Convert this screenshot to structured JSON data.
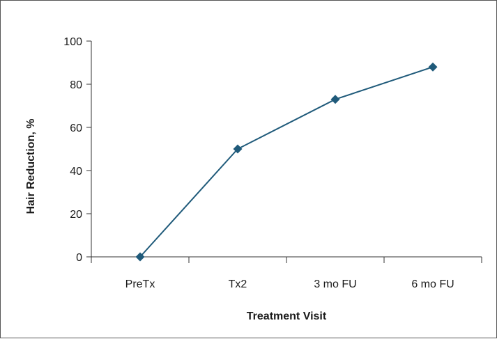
{
  "chart_data": {
    "type": "line",
    "categories": [
      "PreTx",
      "Tx2",
      "3 mo FU",
      "6 mo FU"
    ],
    "series": [
      {
        "values": [
          0,
          50,
          73,
          88
        ]
      }
    ],
    "xlabel": "Treatment Visit",
    "ylabel": "Hair Reduction, %",
    "ylim": [
      0,
      100
    ],
    "yticks": [
      "0",
      "20",
      "40",
      "60",
      "80",
      "100"
    ],
    "grid": false,
    "legend": "none",
    "marker": "diamond",
    "colors": {
      "line": "#1f5a7a",
      "marker": "#1f5a7a",
      "axis": "#333333"
    }
  }
}
